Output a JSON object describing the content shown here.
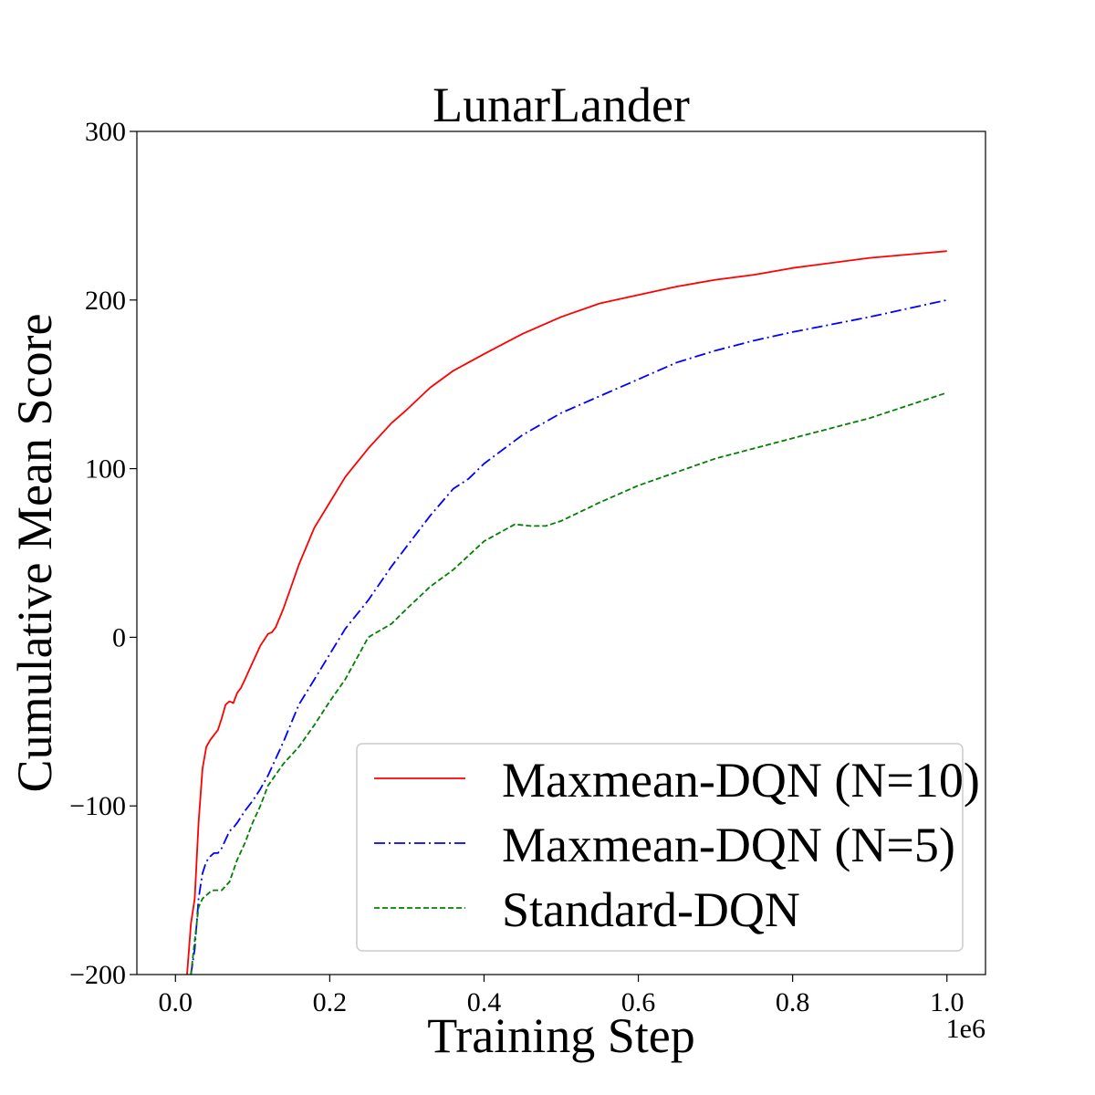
{
  "chart_data": {
    "type": "line",
    "title": "LunarLander",
    "xlabel": "Training Step",
    "ylabel": "Cumulative Mean Score",
    "x_offset_label": "1e6",
    "xlim": [
      -0.05,
      1.05
    ],
    "ylim": [
      -200,
      300
    ],
    "xticks": [
      0.0,
      0.2,
      0.4,
      0.6,
      0.8,
      1.0
    ],
    "xtick_labels": [
      "0.0",
      "0.2",
      "0.4",
      "0.6",
      "0.8",
      "1.0"
    ],
    "yticks": [
      -200,
      -100,
      0,
      100,
      200,
      300
    ],
    "ytick_labels": [
      "−200",
      "−100",
      "0",
      "100",
      "200",
      "300"
    ],
    "grid": false,
    "legend_position": "lower-right",
    "series": [
      {
        "name": "Maxmean-DQN (N=10)",
        "color": "#ff0000",
        "style": "solid",
        "x": [
          0.015,
          0.02,
          0.025,
          0.03,
          0.035,
          0.04,
          0.045,
          0.05,
          0.055,
          0.06,
          0.065,
          0.07,
          0.075,
          0.08,
          0.085,
          0.09,
          0.1,
          0.11,
          0.12,
          0.125,
          0.13,
          0.14,
          0.15,
          0.16,
          0.18,
          0.2,
          0.22,
          0.25,
          0.28,
          0.3,
          0.33,
          0.36,
          0.4,
          0.45,
          0.5,
          0.55,
          0.6,
          0.65,
          0.7,
          0.75,
          0.8,
          0.9,
          1.0
        ],
        "y": [
          -200,
          -170,
          -155,
          -110,
          -78,
          -65,
          -61,
          -58,
          -55,
          -48,
          -40,
          -38,
          -39,
          -33,
          -30,
          -25,
          -15,
          -5,
          2,
          3,
          6,
          17,
          30,
          43,
          65,
          80,
          95,
          112,
          127,
          135,
          148,
          158,
          168,
          180,
          190,
          198,
          203,
          208,
          212,
          215,
          219,
          225,
          229
        ]
      },
      {
        "name": "Maxmean-DQN (N=5)",
        "color": "#0000ff",
        "style": "dashdot",
        "x": [
          0.02,
          0.025,
          0.03,
          0.035,
          0.04,
          0.045,
          0.05,
          0.055,
          0.06,
          0.065,
          0.07,
          0.075,
          0.08,
          0.09,
          0.1,
          0.11,
          0.12,
          0.14,
          0.16,
          0.18,
          0.2,
          0.22,
          0.25,
          0.28,
          0.3,
          0.33,
          0.36,
          0.38,
          0.4,
          0.45,
          0.5,
          0.55,
          0.6,
          0.65,
          0.7,
          0.75,
          0.8,
          0.9,
          1.0
        ],
        "y": [
          -200,
          -185,
          -155,
          -140,
          -133,
          -130,
          -128,
          -128,
          -125,
          -120,
          -115,
          -113,
          -110,
          -103,
          -97,
          -90,
          -82,
          -62,
          -40,
          -25,
          -10,
          5,
          22,
          42,
          54,
          72,
          88,
          94,
          103,
          120,
          133,
          143,
          153,
          163,
          170,
          176,
          181,
          190,
          200
        ]
      },
      {
        "name": "Standard-DQN",
        "color": "#008000",
        "style": "dashed",
        "x": [
          0.02,
          0.025,
          0.03,
          0.035,
          0.04,
          0.045,
          0.05,
          0.055,
          0.06,
          0.07,
          0.08,
          0.09,
          0.1,
          0.11,
          0.12,
          0.14,
          0.16,
          0.18,
          0.2,
          0.22,
          0.25,
          0.28,
          0.3,
          0.33,
          0.36,
          0.4,
          0.44,
          0.46,
          0.48,
          0.5,
          0.55,
          0.6,
          0.65,
          0.7,
          0.75,
          0.8,
          0.9,
          1.0
        ],
        "y": [
          -200,
          -180,
          -160,
          -155,
          -153,
          -151,
          -150,
          -150,
          -150,
          -145,
          -132,
          -122,
          -110,
          -100,
          -88,
          -75,
          -65,
          -52,
          -38,
          -25,
          0,
          8,
          17,
          30,
          40,
          57,
          67,
          66,
          66,
          69,
          80,
          90,
          98,
          106,
          112,
          118,
          130,
          145
        ]
      }
    ]
  }
}
